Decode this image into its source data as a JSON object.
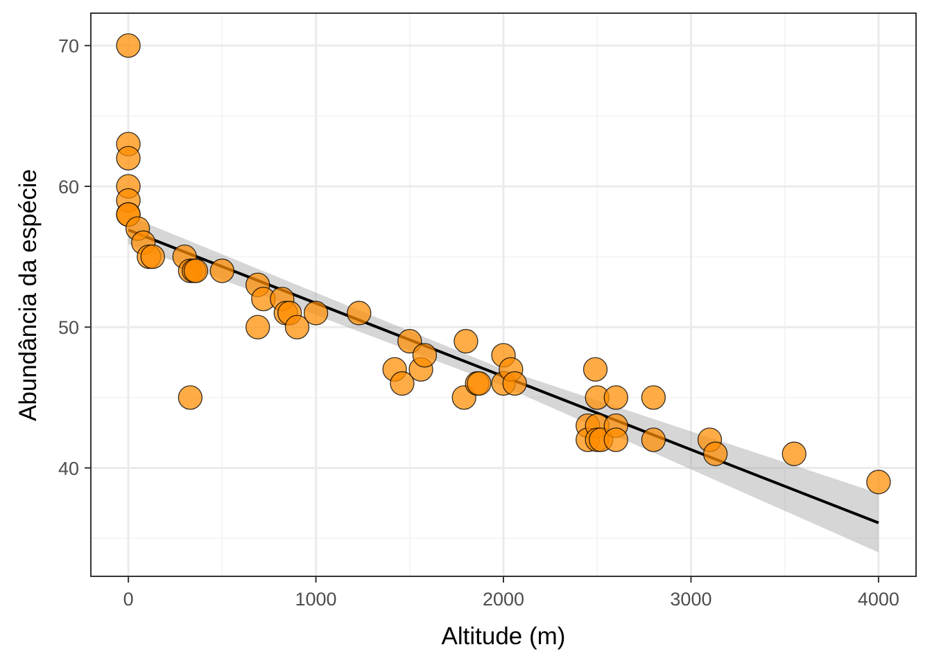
{
  "chart_data": {
    "type": "scatter",
    "title": "",
    "xlabel": "Altitude (m)",
    "ylabel": "Abundância da espécie",
    "xlim": [
      -200,
      4200
    ],
    "ylim": [
      32.3,
      72.3
    ],
    "x_ticks": [
      0,
      1000,
      2000,
      3000,
      4000
    ],
    "x_tick_labels": [
      "0",
      "1000",
      "2000",
      "3000",
      "4000"
    ],
    "y_ticks": [
      40,
      50,
      60,
      70
    ],
    "y_tick_labels": [
      "40",
      "50",
      "60",
      "70"
    ],
    "grid": true,
    "theme": "bw",
    "point_color": "#FF8C00",
    "point_outline": "#000000",
    "line_color": "#000000",
    "band_color": "#999999",
    "points": [
      {
        "x": 0,
        "y": 70
      },
      {
        "x": 0,
        "y": 63
      },
      {
        "x": 0,
        "y": 62
      },
      {
        "x": 0,
        "y": 60
      },
      {
        "x": 0,
        "y": 59
      },
      {
        "x": 0,
        "y": 58
      },
      {
        "x": 0,
        "y": 58
      },
      {
        "x": 50,
        "y": 57
      },
      {
        "x": 80,
        "y": 56
      },
      {
        "x": 110,
        "y": 55
      },
      {
        "x": 130,
        "y": 55
      },
      {
        "x": 300,
        "y": 55
      },
      {
        "x": 330,
        "y": 54
      },
      {
        "x": 350,
        "y": 54
      },
      {
        "x": 360,
        "y": 54
      },
      {
        "x": 330,
        "y": 45
      },
      {
        "x": 500,
        "y": 54
      },
      {
        "x": 690,
        "y": 53
      },
      {
        "x": 720,
        "y": 52
      },
      {
        "x": 690,
        "y": 50
      },
      {
        "x": 820,
        "y": 52
      },
      {
        "x": 840,
        "y": 51
      },
      {
        "x": 860,
        "y": 51
      },
      {
        "x": 900,
        "y": 50
      },
      {
        "x": 1000,
        "y": 51
      },
      {
        "x": 1230,
        "y": 51
      },
      {
        "x": 1420,
        "y": 47
      },
      {
        "x": 1460,
        "y": 46
      },
      {
        "x": 1500,
        "y": 49
      },
      {
        "x": 1560,
        "y": 47
      },
      {
        "x": 1580,
        "y": 48
      },
      {
        "x": 1790,
        "y": 45
      },
      {
        "x": 1800,
        "y": 49
      },
      {
        "x": 1860,
        "y": 46
      },
      {
        "x": 1870,
        "y": 46
      },
      {
        "x": 2000,
        "y": 48
      },
      {
        "x": 2000,
        "y": 46
      },
      {
        "x": 2040,
        "y": 47
      },
      {
        "x": 2060,
        "y": 46
      },
      {
        "x": 2450,
        "y": 43
      },
      {
        "x": 2450,
        "y": 42
      },
      {
        "x": 2490,
        "y": 47
      },
      {
        "x": 2500,
        "y": 45
      },
      {
        "x": 2500,
        "y": 43
      },
      {
        "x": 2500,
        "y": 42
      },
      {
        "x": 2520,
        "y": 42
      },
      {
        "x": 2600,
        "y": 45
      },
      {
        "x": 2600,
        "y": 43
      },
      {
        "x": 2600,
        "y": 42
      },
      {
        "x": 2800,
        "y": 45
      },
      {
        "x": 2800,
        "y": 42
      },
      {
        "x": 3100,
        "y": 42
      },
      {
        "x": 3130,
        "y": 41
      },
      {
        "x": 3550,
        "y": 41
      },
      {
        "x": 4000,
        "y": 39
      }
    ],
    "fit_line": {
      "x": [
        0,
        4000
      ],
      "y": [
        56.9,
        36.1
      ]
    },
    "confidence_band": {
      "x": [
        0,
        2000,
        4000
      ],
      "upper": [
        57.9,
        47.0,
        38.2
      ],
      "lower": [
        55.9,
        45.8,
        34.0
      ]
    }
  }
}
